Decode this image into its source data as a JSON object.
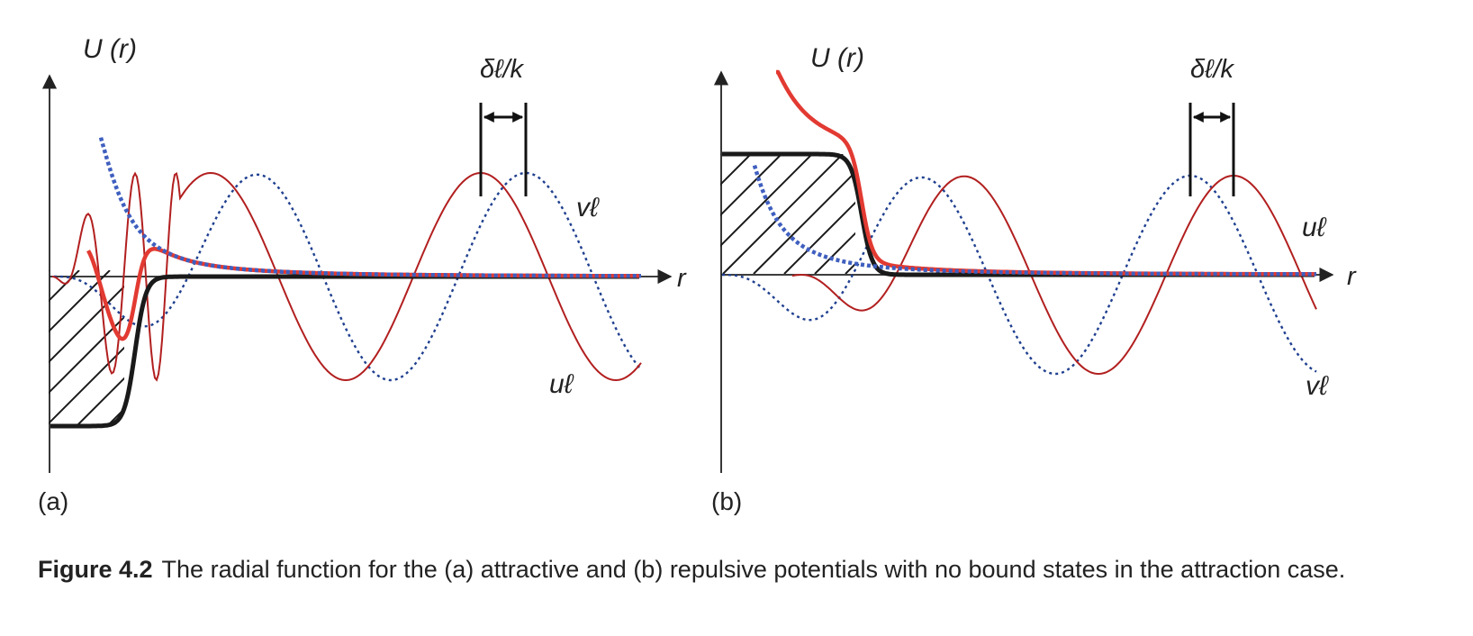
{
  "panel_a": {
    "tag": "(a)",
    "potential_label": "U (r)",
    "shift_label": "δℓ/k",
    "r_label": "r",
    "v_label": "vℓ",
    "u_label": "uℓ"
  },
  "panel_b": {
    "tag": "(b)",
    "potential_label": "U (r)",
    "shift_label": "δℓ/k",
    "r_label": "r",
    "u_label": "uℓ",
    "v_label": "vℓ"
  },
  "caption": {
    "label": "Figure 4.2",
    "text": "The radial function for the (a) attractive and (b) repulsive potentials with no bound states in the attraction case."
  },
  "colors": {
    "wavefunction_u": "#b21f1f",
    "free_wave_v": "#1f3f8f",
    "effective_potential": "#e23a32",
    "centrifugal_dotted": "#3f5fbf",
    "well": "#1a1a1a"
  }
}
